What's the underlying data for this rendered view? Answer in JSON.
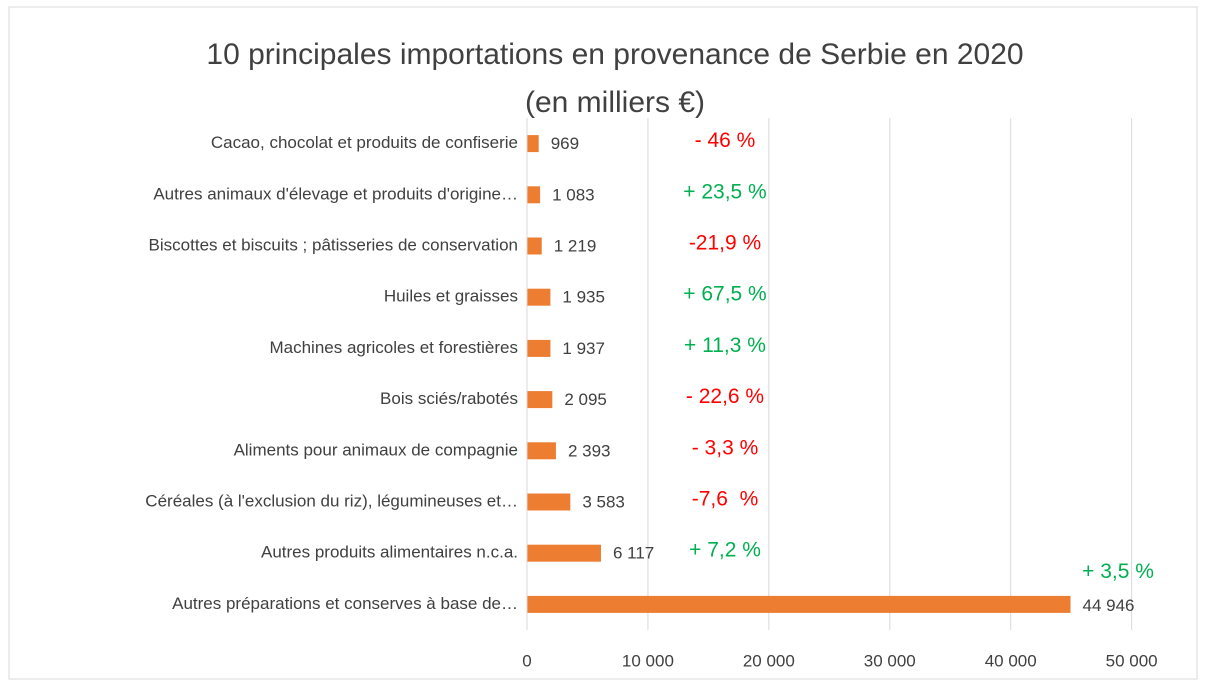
{
  "chart_data": {
    "type": "hbar",
    "title": "10 principales importations en provenance de Serbie en 2020",
    "subtitle": "(en milliers €)",
    "categories": [
      "Cacao, chocolat et produits de confiserie",
      "Autres animaux d'élevage et produits d'origine…",
      "Biscottes et biscuits ; pâtisseries de conservation",
      "Huiles et graisses",
      "Machines agricoles et forestières",
      "Bois sciés/rabotés",
      "Aliments pour animaux de compagnie",
      "Céréales (à l'exclusion du riz), légumineuses et…",
      "Autres produits alimentaires n.c.a.",
      "Autres préparations et conserves à base de…"
    ],
    "values": [
      969,
      1083,
      1219,
      1935,
      1937,
      2095,
      2393,
      3583,
      6117,
      44946
    ],
    "value_labels": [
      "969",
      "1 083",
      "1 219",
      "1 935",
      "1 937",
      "2 095",
      "2 393",
      "3 583",
      "6 117",
      "44 946"
    ],
    "color": "#ed7d31",
    "annotations": [
      {
        "text": "- 46 %",
        "color": "#ff0000"
      },
      {
        "text": "+ 23,5 %",
        "color": "#00b050"
      },
      {
        "text": "-21,9 %",
        "color": "#ff0000"
      },
      {
        "text": "+ 67,5 %",
        "color": "#00b050"
      },
      {
        "text": "+ 11,3 %",
        "color": "#00b050"
      },
      {
        "text": "- 22,6 %",
        "color": "#ff0000"
      },
      {
        "text": "- 3,3 %",
        "color": "#ff0000"
      },
      {
        "text": "-7,6  %",
        "color": "#ff0000"
      },
      {
        "text": "+ 7,2 %",
        "color": "#00b050"
      },
      {
        "text": "+ 3,5 %",
        "color": "#00b050"
      }
    ],
    "xlim": [
      0,
      54000
    ],
    "xticks": [
      0,
      {
        "value": 10000,
        "label": "10 000"
      },
      {
        "value": 20000,
        "label": "20 000"
      },
      {
        "value": 30000,
        "label": "30 000"
      },
      {
        "value": 40000,
        "label": "40 000"
      },
      {
        "value": 50000,
        "label": "50 000"
      }
    ],
    "grid": true
  }
}
